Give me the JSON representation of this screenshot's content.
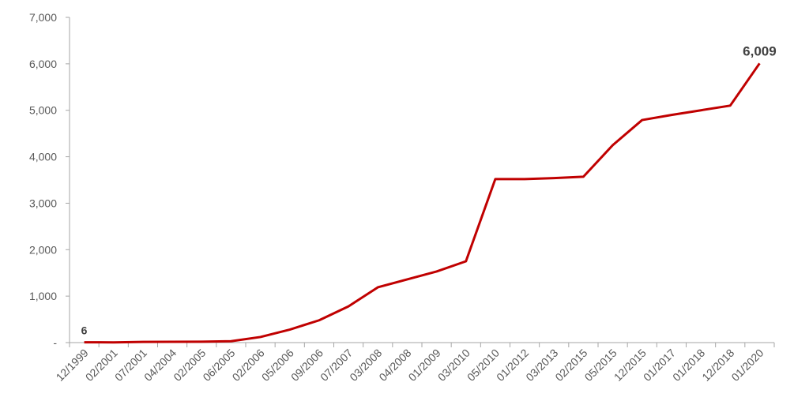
{
  "chart_data": {
    "type": "line",
    "categories": [
      "12/1999",
      "02/2001",
      "07/2001",
      "04/2004",
      "02/2005",
      "06/2005",
      "02/2006",
      "05/2006",
      "09/2006",
      "07/2007",
      "03/2008",
      "04/2008",
      "01/2009",
      "03/2010",
      "05/2010",
      "01/2012",
      "03/2013",
      "02/2015",
      "05/2015",
      "12/2015",
      "01/2017",
      "01/2018",
      "12/2018",
      "01/2020"
    ],
    "series": [
      {
        "color": "#c00000",
        "values": [
          6,
          5,
          15,
          18,
          20,
          30,
          120,
          280,
          480,
          780,
          1190,
          1360,
          1530,
          1750,
          3520,
          3520,
          3540,
          3570,
          4250,
          4790,
          4900,
          5000,
          5100,
          6009
        ],
        "value_labels": [
          "6",
          null,
          null,
          null,
          null,
          null,
          null,
          null,
          null,
          null,
          null,
          null,
          null,
          null,
          null,
          null,
          null,
          null,
          null,
          null,
          null,
          null,
          null,
          "6,009"
        ]
      }
    ],
    "ylim": [
      0,
      7000
    ],
    "yticks": [
      {
        "value": 0,
        "label": "-"
      },
      {
        "value": 1000,
        "label": "1,000"
      },
      {
        "value": 2000,
        "label": "2,000"
      },
      {
        "value": 3000,
        "label": "3,000"
      },
      {
        "value": 4000,
        "label": "4,000"
      },
      {
        "value": 5000,
        "label": "5,000"
      },
      {
        "value": 6000,
        "label": "6,000"
      },
      {
        "value": 7000,
        "label": "7,000"
      }
    ],
    "grid": false
  }
}
